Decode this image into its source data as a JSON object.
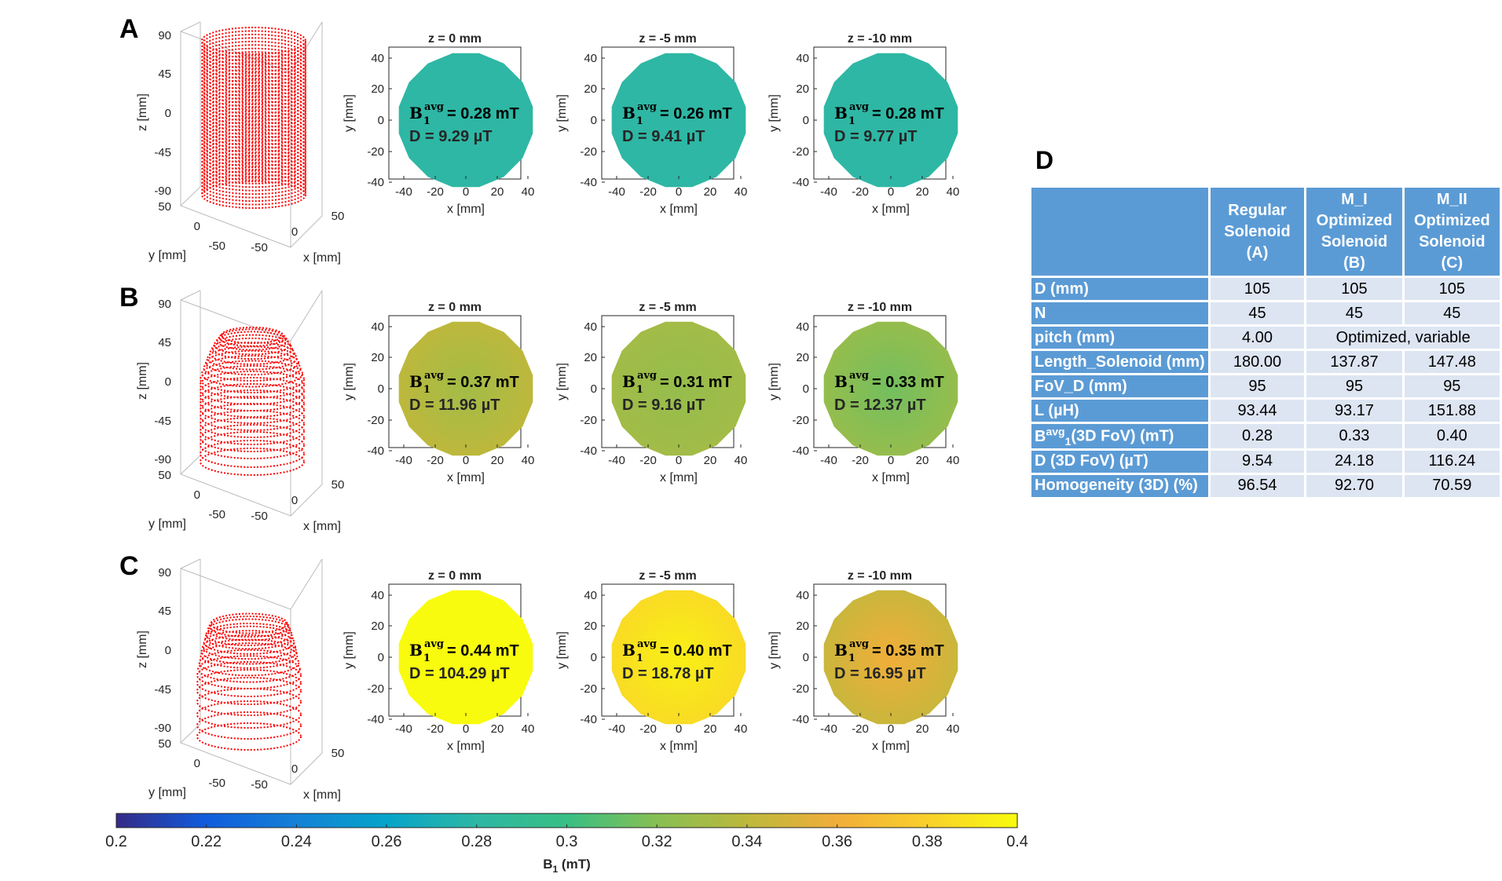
{
  "panels": [
    {
      "letter": "A",
      "coil": "regular"
    },
    {
      "letter": "B",
      "coil": "dome"
    },
    {
      "letter": "C",
      "coil": "optimized"
    }
  ],
  "coil_axes": {
    "z_ticks": [
      "90",
      "45",
      "0",
      "-45",
      "-90"
    ],
    "z_label": "z [mm]",
    "y_ticks": [
      "50",
      "0",
      "-50"
    ],
    "y_label": "y [mm]",
    "x_ticks": [
      "-50",
      "0",
      "50"
    ],
    "x_label": "x [mm]"
  },
  "map_axes": {
    "y_ticks": [
      "40",
      "20",
      "0",
      "-20",
      "-40"
    ],
    "y_label": "y [mm]",
    "x_ticks": [
      "-40",
      "-20",
      "0",
      "20",
      "40"
    ],
    "x_label": "x [mm]"
  },
  "maps": [
    [
      {
        "title": "z = 0 mm",
        "bavg": "= 0.28 mT",
        "d": "D =  9.29 µT",
        "field": 0.28,
        "edge": 0.28
      },
      {
        "title": "z = -5 mm",
        "bavg": "= 0.26 mT",
        "d": "D =  9.41 µT",
        "field": 0.28,
        "edge": 0.28
      },
      {
        "title": "z = -10 mm",
        "bavg": "= 0.28 mT",
        "d": "D =  9.77 µT",
        "field": 0.28,
        "edge": 0.28
      }
    ],
    [
      {
        "title": "z = 0 mm",
        "bavg": "= 0.37 mT",
        "d": "D =  11.96 µT",
        "field": 0.33,
        "edge": 0.34
      },
      {
        "title": "z = -5 mm",
        "bavg": "= 0.31 mT",
        "d": "D =  9.16 µT",
        "field": 0.325,
        "edge": 0.33
      },
      {
        "title": "z = -10 mm",
        "bavg": "= 0.33 mT",
        "d": "D =  12.37 µT",
        "field": 0.315,
        "edge": 0.325
      }
    ],
    [
      {
        "title": "z = 0 mm",
        "bavg": "= 0.44 mT",
        "d": "D =  104.29 µT",
        "field": 0.4,
        "edge": 0.4
      },
      {
        "title": "z = -5 mm",
        "bavg": "= 0.40 mT",
        "d": "D =  18.78 µT",
        "field": 0.395,
        "edge": 0.385
      },
      {
        "title": "z = -10 mm",
        "bavg": "= 0.35 mT",
        "d": "D =  16.95 µT",
        "field": 0.36,
        "edge": 0.345
      }
    ]
  ],
  "bavg_symbol": {
    "base": "B",
    "sub": "1",
    "sup": "avg"
  },
  "colorbar": {
    "ticks": [
      "0.2",
      "0.22",
      "0.24",
      "0.26",
      "0.28",
      "0.3",
      "0.32",
      "0.34",
      "0.36",
      "0.38",
      "0.4"
    ],
    "min": 0.2,
    "max": 0.4,
    "label_base": "B",
    "label_sub": "1",
    "label_unit": " (mT)"
  },
  "table": {
    "letter": "D",
    "header": [
      "",
      "Regular Solenoid (A)",
      "M_I Optimized Solenoid (B)",
      "M_II Optimized Solenoid (C)"
    ],
    "rows": [
      {
        "label": "D (mm)",
        "cells": [
          "105",
          "105",
          "105"
        ]
      },
      {
        "label": "N",
        "cells": [
          "45",
          "45",
          "45"
        ]
      },
      {
        "label": "pitch (mm)",
        "cells": [
          "4.00",
          "Optimized, variable"
        ]
      },
      {
        "label": "Length_Solenoid (mm)",
        "cells": [
          "180.00",
          "137.87",
          "147.48"
        ]
      },
      {
        "label": "FoV_D (mm)",
        "cells": [
          "95",
          "95",
          "95"
        ]
      },
      {
        "label": "L (µH)",
        "cells": [
          "93.44",
          "93.17",
          "151.88"
        ]
      },
      {
        "label": "(3D FoV) (mT)",
        "cells": [
          "0.28",
          "0.33",
          "0.40"
        ]
      },
      {
        "label": "D (3D FoV) (µT)",
        "cells": [
          "9.54",
          "24.18",
          "116.24"
        ]
      },
      {
        "label": "Homogeneity (3D) (%)",
        "cells": [
          "96.54",
          "92.70",
          "70.59"
        ]
      }
    ]
  }
}
